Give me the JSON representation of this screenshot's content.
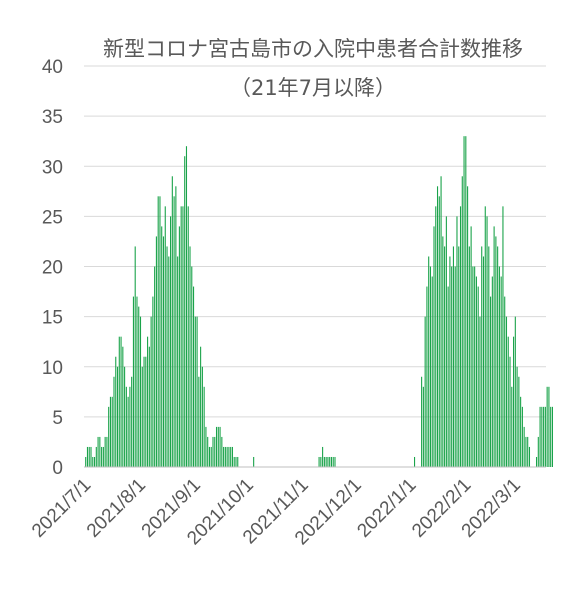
{
  "chart_data": {
    "type": "bar",
    "title": "新型コロナ宮古島市の入院中患者合計数推移",
    "subtitle": "（21年7月以降）",
    "xlabel": "",
    "ylabel": "",
    "ylim": [
      0,
      40
    ],
    "y_ticks": [
      "0",
      "5",
      "10",
      "15",
      "20",
      "25",
      "30",
      "35",
      "40"
    ],
    "x_ticks": [
      {
        "label": "2021/7/1",
        "day": 0
      },
      {
        "label": "2021/8/1",
        "day": 31
      },
      {
        "label": "2021/9/1",
        "day": 62
      },
      {
        "label": "2021/10/1",
        "day": 92
      },
      {
        "label": "2021/11/1",
        "day": 123
      },
      {
        "label": "2021/12/1",
        "day": 153
      },
      {
        "label": "2022/1/1",
        "day": 184
      },
      {
        "label": "2022/2/1",
        "day": 215
      },
      {
        "label": "2022/3/1",
        "day": 243
      }
    ],
    "grid": true,
    "legend": "none",
    "color": "#1aa34a",
    "start_date": "2021-07-01",
    "values": [
      1,
      2,
      2,
      2,
      1,
      1,
      2,
      3,
      3,
      2,
      2,
      3,
      3,
      6,
      7,
      7,
      9,
      11,
      10,
      13,
      13,
      12,
      10,
      8,
      7,
      8,
      9,
      17,
      22,
      17,
      16,
      15,
      10,
      11,
      11,
      13,
      12,
      15,
      17,
      20,
      23,
      27,
      27,
      24,
      23,
      26,
      22,
      21,
      25,
      29,
      27,
      28,
      21,
      24,
      26,
      26,
      31,
      32,
      26,
      22,
      20,
      18,
      15,
      15,
      9,
      12,
      10,
      8,
      4,
      3,
      2,
      2,
      3,
      3,
      4,
      4,
      4,
      3,
      2,
      2,
      2,
      2,
      2,
      2,
      1,
      1,
      1,
      0,
      0,
      0,
      0,
      0,
      0,
      0,
      0,
      1,
      0,
      0,
      0,
      0,
      0,
      0,
      0,
      0,
      0,
      0,
      0,
      0,
      0,
      0,
      0,
      0,
      0,
      0,
      0,
      0,
      0,
      0,
      0,
      0,
      0,
      0,
      0,
      0,
      0,
      0,
      0,
      0,
      0,
      0,
      0,
      0,
      1,
      1,
      2,
      1,
      1,
      1,
      1,
      1,
      1,
      1,
      0,
      0,
      0,
      0,
      0,
      0,
      0,
      0,
      0,
      0,
      0,
      0,
      0,
      0,
      0,
      0,
      0,
      0,
      0,
      0,
      0,
      0,
      0,
      0,
      0,
      0,
      0,
      0,
      0,
      0,
      0,
      0,
      0,
      0,
      0,
      0,
      0,
      0,
      0,
      0,
      0,
      0,
      0,
      0,
      1,
      0,
      0,
      0,
      9,
      8,
      15,
      18,
      21,
      20,
      19,
      24,
      26,
      28,
      27,
      29,
      23,
      22,
      25,
      18,
      21,
      20,
      22,
      20,
      25,
      22,
      26,
      29,
      33,
      33,
      28,
      22,
      24,
      20,
      20,
      19,
      18,
      15,
      22,
      21,
      26,
      25,
      22,
      17,
      19,
      24,
      23,
      22,
      20,
      19,
      26,
      17,
      15,
      13,
      11,
      8,
      13,
      15,
      10,
      9,
      7,
      6,
      4,
      3,
      3,
      2,
      0,
      0,
      0,
      1,
      3,
      6,
      6,
      6,
      6,
      8,
      8,
      6,
      6
    ]
  }
}
